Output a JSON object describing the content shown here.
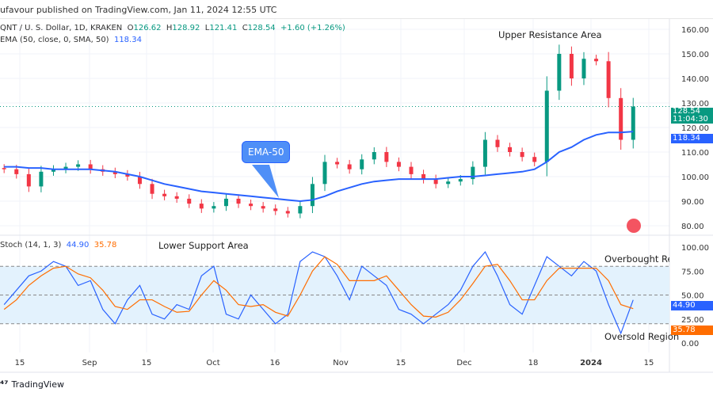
{
  "header": {
    "published": "ufavour published on TradingView.com, Jan 11, 2024 12:55 UTC"
  },
  "legend": {
    "symbol": "QNT / U. S. Dollar, 1D, KRAKEN",
    "o_label": "O",
    "o": "126.62",
    "h_label": "H",
    "h": "128.92",
    "l_label": "L",
    "l": "121.41",
    "c_label": "C",
    "c": "128.54",
    "change": "+1.60 (+1.26%)",
    "ema_label": "EMA (50, close, 0, SMA, 50)",
    "ema_value": "118.34",
    "stoch_label": "Stoch (14, 1, 3)",
    "stoch_k": "44.90",
    "stoch_d": "35.78"
  },
  "annotations": {
    "upper": "Upper Resistance Area",
    "lower": "Lower Support Area",
    "overbought": "Overbought Region",
    "oversold": "Oversold Region",
    "ema_callout": "EMA-50"
  },
  "price_tags": {
    "last": "128.54",
    "countdown": "11:04:30",
    "ema": "118.34",
    "stoch_k": "44.90",
    "stoch_d": "35.78"
  },
  "footer": {
    "brand": "TradingView"
  },
  "colors": {
    "up": "#089981",
    "down": "#f23645",
    "ema": "#2962ff",
    "k": "#2962ff",
    "d": "#ff6d00",
    "band": "#e3f2fd"
  },
  "chart_data": [
    {
      "type": "candlestick",
      "title": "QNT / U. S. Dollar, 1D, KRAKEN",
      "ylim": [
        78,
        163
      ],
      "yticks": [
        "160.00",
        "150.00",
        "140.00",
        "130.00",
        "120.00",
        "110.00",
        "100.00",
        "90.00",
        "80.00"
      ],
      "xticks": [
        "15",
        "Sep",
        "15",
        "Oct",
        "16",
        "Nov",
        "15",
        "Dec",
        "18",
        "2024",
        "15"
      ],
      "dates": [
        "2023-08-11",
        "2023-08-14",
        "2023-08-17",
        "2023-08-20",
        "2023-08-23",
        "2023-08-26",
        "2023-08-29",
        "2023-09-01",
        "2023-09-04",
        "2023-09-07",
        "2023-09-10",
        "2023-09-13",
        "2023-09-16",
        "2023-09-19",
        "2023-09-22",
        "2023-09-25",
        "2023-09-28",
        "2023-10-01",
        "2023-10-04",
        "2023-10-07",
        "2023-10-10",
        "2023-10-13",
        "2023-10-16",
        "2023-10-19",
        "2023-10-22",
        "2023-10-25",
        "2023-10-28",
        "2023-10-31",
        "2023-11-03",
        "2023-11-06",
        "2023-11-09",
        "2023-11-12",
        "2023-11-15",
        "2023-11-18",
        "2023-11-21",
        "2023-11-24",
        "2023-11-27",
        "2023-11-30",
        "2023-12-03",
        "2023-12-06",
        "2023-12-09",
        "2023-12-12",
        "2023-12-15",
        "2023-12-18",
        "2023-12-21",
        "2023-12-24",
        "2023-12-27",
        "2023-12-30",
        "2024-01-02",
        "2024-01-05",
        "2024-01-08",
        "2024-01-11"
      ],
      "close": [
        103,
        101,
        96,
        102,
        103,
        104,
        105,
        103,
        102,
        101,
        100,
        97,
        93,
        92,
        91,
        89,
        87,
        88,
        91,
        89,
        88,
        87,
        86,
        85,
        88,
        97,
        106,
        105,
        103,
        107,
        110,
        106,
        104,
        101,
        99,
        97,
        98,
        99,
        104,
        115,
        112,
        110,
        108,
        106,
        135,
        150,
        140,
        148,
        147,
        132,
        115,
        128.54
      ],
      "series": [
        {
          "name": "EMA (50, close, 0, SMA, 50)",
          "values": [
            104,
            104,
            103.5,
            103.5,
            103,
            103,
            103,
            103,
            102.5,
            102,
            101,
            100,
            98.5,
            97,
            96,
            95,
            94,
            93.5,
            93,
            92.5,
            92,
            91.5,
            91,
            90.5,
            90,
            90.5,
            92,
            94,
            95.5,
            97,
            98,
            98.5,
            99,
            99,
            99,
            99,
            99.5,
            100,
            100,
            100.5,
            101,
            101.5,
            102,
            103,
            106,
            110,
            112,
            115,
            117,
            118,
            118,
            118.34
          ]
        }
      ]
    },
    {
      "type": "line",
      "title": "Stoch (14, 1, 3)",
      "ylim": [
        0,
        100
      ],
      "yticks": [
        "100.00",
        "75.00",
        "50.00",
        "25.00",
        "0.00"
      ],
      "bands": [
        80,
        20
      ],
      "series": [
        {
          "name": "%K",
          "values": [
            40,
            55,
            70,
            75,
            85,
            80,
            60,
            65,
            35,
            20,
            45,
            60,
            30,
            25,
            40,
            35,
            70,
            80,
            30,
            25,
            50,
            35,
            20,
            30,
            85,
            95,
            90,
            70,
            45,
            80,
            70,
            60,
            35,
            30,
            20,
            30,
            40,
            55,
            80,
            95,
            70,
            40,
            30,
            60,
            90,
            80,
            70,
            85,
            75,
            40,
            10,
            44.9
          ]
        },
        {
          "name": "%D",
          "values": [
            35,
            45,
            60,
            70,
            78,
            80,
            72,
            68,
            55,
            38,
            35,
            45,
            45,
            38,
            32,
            33,
            50,
            65,
            55,
            40,
            38,
            40,
            32,
            28,
            50,
            75,
            90,
            82,
            65,
            65,
            65,
            70,
            55,
            40,
            28,
            27,
            32,
            45,
            62,
            80,
            82,
            65,
            45,
            45,
            65,
            78,
            78,
            78,
            78,
            65,
            40,
            35.78
          ]
        }
      ]
    }
  ]
}
